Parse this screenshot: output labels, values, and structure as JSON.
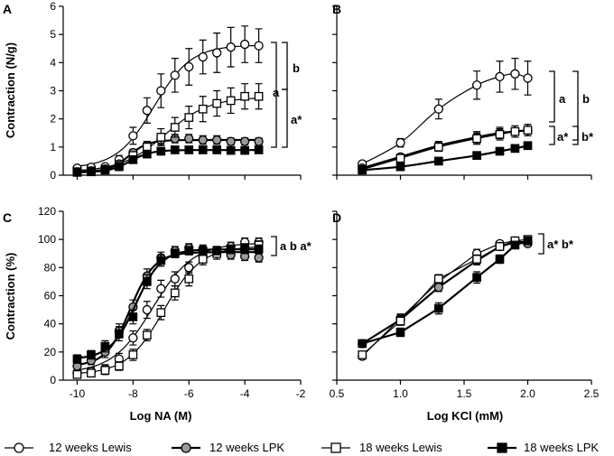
{
  "legend": [
    {
      "label": "12 weeks Lewis",
      "marker": "circle",
      "fill": "#ffffff",
      "line_style": "thin"
    },
    {
      "label": "12 weeks LPK",
      "marker": "circle",
      "fill": "#9a9a9a",
      "line_style": "thick"
    },
    {
      "label": "18 weeks Lewis",
      "marker": "square",
      "fill": "#ffffff",
      "line_style": "thin"
    },
    {
      "label": "18 weeks LPK",
      "marker": "square",
      "fill": "#000000",
      "line_style": "thick"
    }
  ],
  "chart_data": [
    {
      "panel": "A",
      "type": "line",
      "xlabel": "",
      "ylabel": "Contraction (N/g)",
      "xlim": [
        -10.5,
        -2
      ],
      "ylim": [
        0,
        6
      ],
      "xticks": [],
      "yticks": [
        0,
        1,
        2,
        3,
        4,
        5,
        6
      ],
      "x": [
        -10,
        -9.5,
        -9,
        -8.5,
        -8,
        -7.5,
        -7,
        -6.5,
        -6,
        -5.5,
        -5,
        -4.5,
        -4,
        -3.5
      ],
      "series": [
        {
          "name": "12 weeks Lewis",
          "values": [
            0.25,
            0.28,
            0.3,
            0.55,
            1.4,
            2.3,
            3.0,
            3.55,
            3.85,
            4.2,
            4.35,
            4.55,
            4.65,
            4.6
          ],
          "errors": [
            0.05,
            0.05,
            0.08,
            0.15,
            0.3,
            0.45,
            0.6,
            0.6,
            0.65,
            0.6,
            0.7,
            0.7,
            0.65,
            0.6
          ],
          "fit": "sigmoid"
        },
        {
          "name": "12 weeks LPK",
          "values": [
            0.12,
            0.15,
            0.22,
            0.4,
            0.8,
            1.05,
            1.25,
            1.3,
            1.3,
            1.25,
            1.25,
            1.2,
            1.2,
            1.2
          ],
          "errors": [
            0.04,
            0.05,
            0.06,
            0.08,
            0.12,
            0.15,
            0.15,
            0.15,
            0.15,
            0.15,
            0.15,
            0.12,
            0.12,
            0.12
          ],
          "fit": "sigmoid"
        },
        {
          "name": "18 weeks Lewis",
          "values": [
            0.12,
            0.15,
            0.2,
            0.35,
            0.7,
            1.0,
            1.35,
            1.7,
            2.05,
            2.35,
            2.55,
            2.65,
            2.8,
            2.8
          ],
          "errors": [
            0.04,
            0.05,
            0.06,
            0.08,
            0.12,
            0.2,
            0.3,
            0.35,
            0.4,
            0.45,
            0.45,
            0.45,
            0.45,
            0.45
          ],
          "fit": "sigmoid"
        },
        {
          "name": "18 weeks LPK",
          "values": [
            0.1,
            0.12,
            0.18,
            0.3,
            0.55,
            0.75,
            0.85,
            0.9,
            0.9,
            0.9,
            0.9,
            0.88,
            0.88,
            0.9
          ],
          "errors": [
            0.03,
            0.04,
            0.05,
            0.06,
            0.08,
            0.1,
            0.12,
            0.12,
            0.12,
            0.12,
            0.12,
            0.12,
            0.12,
            0.12
          ],
          "fit": "sigmoid"
        }
      ],
      "annotations": [
        "b",
        "a",
        "a*"
      ]
    },
    {
      "panel": "B",
      "type": "line",
      "xlabel": "",
      "ylabel": "",
      "xlim": [
        0.5,
        2.5
      ],
      "ylim": [
        0,
        6
      ],
      "xticks": [],
      "yticks": [],
      "x": [
        0.7,
        1.0,
        1.3,
        1.6,
        1.78,
        1.9,
        2.0
      ],
      "series": [
        {
          "name": "12 weeks Lewis",
          "values": [
            0.4,
            1.15,
            2.35,
            3.2,
            3.5,
            3.6,
            3.45
          ],
          "errors": [
            0.05,
            0.15,
            0.35,
            0.5,
            0.55,
            0.55,
            0.6
          ],
          "fit": "smooth"
        },
        {
          "name": "12 weeks LPK",
          "values": [
            0.25,
            0.65,
            1.05,
            1.35,
            1.5,
            1.55,
            1.6
          ],
          "errors": [
            0.04,
            0.1,
            0.15,
            0.2,
            0.2,
            0.2,
            0.2
          ],
          "fit": "smooth"
        },
        {
          "name": "18 weeks Lewis",
          "values": [
            0.2,
            0.6,
            1.0,
            1.3,
            1.45,
            1.55,
            1.6
          ],
          "errors": [
            0.04,
            0.1,
            0.15,
            0.2,
            0.2,
            0.2,
            0.2
          ],
          "fit": "smooth"
        },
        {
          "name": "18 weeks LPK",
          "values": [
            0.18,
            0.3,
            0.5,
            0.7,
            0.85,
            0.95,
            1.05
          ],
          "errors": [
            0.03,
            0.05,
            0.06,
            0.08,
            0.1,
            0.1,
            0.12
          ],
          "fit": "smooth"
        }
      ],
      "annotations": [
        "a",
        "b",
        "a*",
        "b*"
      ]
    },
    {
      "panel": "C",
      "type": "line",
      "xlabel": "Log NA (M)",
      "ylabel": "Contraction (%)",
      "xlim": [
        -10.5,
        -2
      ],
      "ylim": [
        0,
        120
      ],
      "xticks": [
        -10,
        -8,
        -6,
        -4,
        -2
      ],
      "yticks": [
        0,
        20,
        40,
        60,
        80,
        100,
        120
      ],
      "x": [
        -10,
        -9.5,
        -9,
        -8.5,
        -8,
        -7.5,
        -7,
        -6.5,
        -6,
        -5.5,
        -5,
        -4.5,
        -4,
        -3.5
      ],
      "series": [
        {
          "name": "12 weeks Lewis",
          "values": [
            5,
            6,
            8,
            15,
            30,
            50,
            65,
            72,
            80,
            88,
            92,
            95,
            98,
            98
          ],
          "errors": [
            3,
            3,
            3,
            4,
            5,
            6,
            6,
            5,
            4,
            3,
            3,
            3,
            3,
            3
          ],
          "fit": "sigmoid"
        },
        {
          "name": "12 weeks LPK",
          "values": [
            10,
            14,
            20,
            35,
            52,
            74,
            87,
            92,
            94,
            93,
            91,
            89,
            88,
            87
          ],
          "errors": [
            3,
            3,
            4,
            5,
            5,
            5,
            4,
            3,
            3,
            3,
            3,
            3,
            3,
            3
          ],
          "fit": "sigmoid"
        },
        {
          "name": "18 weeks Lewis",
          "values": [
            4,
            5,
            7,
            10,
            18,
            32,
            48,
            62,
            72,
            86,
            90,
            93,
            94,
            96
          ],
          "errors": [
            2,
            2,
            3,
            3,
            4,
            4,
            5,
            5,
            5,
            4,
            4,
            3,
            3,
            3
          ],
          "fit": "sigmoid"
        },
        {
          "name": "18 weeks LPK",
          "values": [
            15,
            18,
            24,
            33,
            45,
            70,
            85,
            90,
            92,
            92,
            92,
            93,
            93,
            93
          ],
          "errors": [
            3,
            3,
            4,
            5,
            5,
            5,
            4,
            3,
            3,
            3,
            3,
            3,
            3,
            3
          ],
          "fit": "sigmoid"
        }
      ],
      "annotations": [
        "a b a*"
      ]
    },
    {
      "panel": "D",
      "type": "line",
      "xlabel": "Log KCl (mM)",
      "ylabel": "",
      "xlim": [
        0.5,
        2.5
      ],
      "ylim": [
        0,
        120
      ],
      "xticks": [
        0.5,
        1.0,
        1.5,
        2.0,
        2.5
      ],
      "yticks": [],
      "x": [
        0.7,
        1.0,
        1.3,
        1.6,
        1.78,
        1.9,
        2.0
      ],
      "series": [
        {
          "name": "12 weeks Lewis",
          "values": [
            17,
            44,
            70,
            90,
            97,
            99,
            98
          ],
          "errors": [
            2,
            3,
            3,
            3,
            2,
            2,
            2
          ],
          "fit": "line"
        },
        {
          "name": "12 weeks LPK",
          "values": [
            26,
            43,
            66,
            85,
            95,
            98,
            97
          ],
          "errors": [
            2,
            3,
            3,
            3,
            2,
            2,
            2
          ],
          "fit": "line"
        },
        {
          "name": "18 weeks Lewis",
          "values": [
            18,
            42,
            72,
            86,
            95,
            99,
            100
          ],
          "errors": [
            2,
            3,
            3,
            3,
            2,
            2,
            2
          ],
          "fit": "line"
        },
        {
          "name": "18 weeks LPK",
          "values": [
            26,
            34,
            51,
            73,
            86,
            96,
            99
          ],
          "errors": [
            2,
            3,
            4,
            4,
            3,
            2,
            2
          ],
          "fit": "line"
        }
      ],
      "annotations": [
        "a* b*"
      ]
    }
  ]
}
